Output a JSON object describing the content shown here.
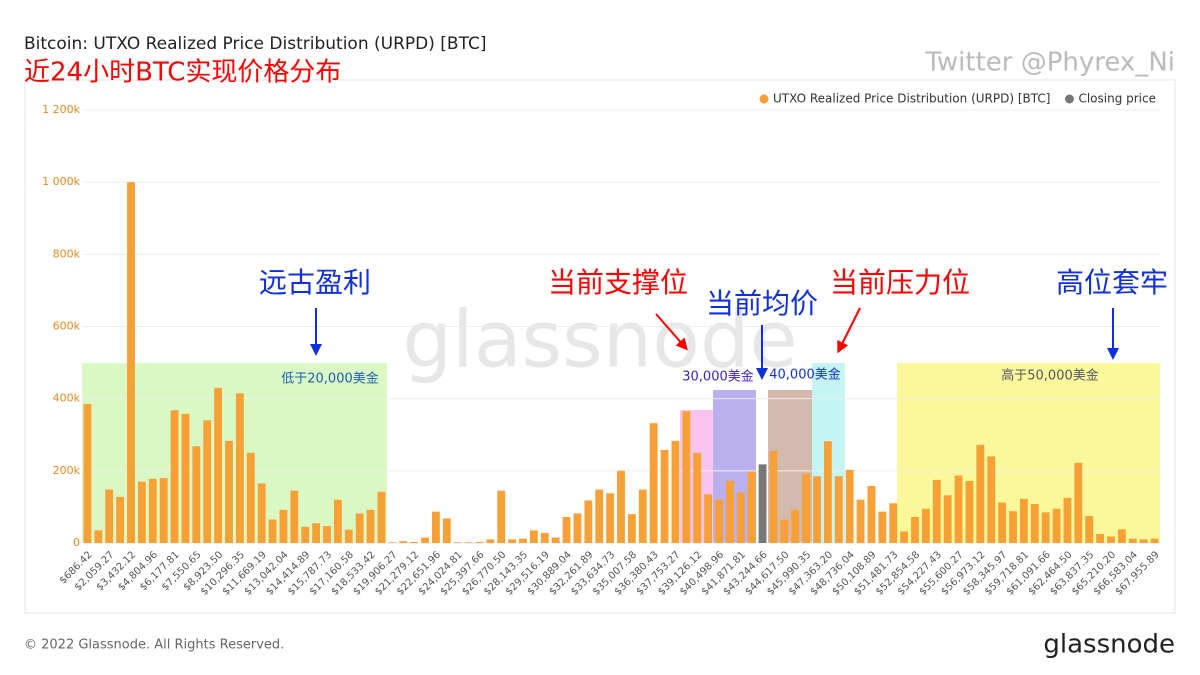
{
  "title": "Bitcoin: UTXO Realized Price Distribution (URPD) [BTC]",
  "subtitle": "近24小时BTC实现价格分布",
  "watermark_credit": "Twitter @Phyrex_Ni",
  "watermark_brand": "glassnode",
  "footer": "© 2022 Glassnode. All Rights Reserved.",
  "logo": "glassnode",
  "annotations": {
    "ancient_profit": "远古盈利",
    "support": "当前支撑位",
    "avg": "当前均价",
    "resistance": "当前压力位",
    "trapped": "高位套牢",
    "region_low": "低于20,000美金",
    "region_30k": "30,000美金",
    "region_40k": "40,000美金",
    "region_high": "高于50,000美金"
  },
  "chart_data": {
    "type": "bar",
    "legend": "top-right",
    "categories": [
      "$686.42",
      null,
      "$2,059.27",
      null,
      "$3,432.12",
      null,
      "$4,804.96",
      null,
      "$6,177.81",
      null,
      "$7,550.65",
      null,
      "$8,923.50",
      null,
      "$10,296.35",
      null,
      "$11,669.19",
      null,
      "$13,042.04",
      null,
      "$14,414.89",
      null,
      "$15,787.73",
      null,
      "$17,160.58",
      null,
      "$18,533.42",
      null,
      "$19,906.27",
      null,
      "$21,279.12",
      null,
      "$22,651.96",
      null,
      "$24,024.81",
      null,
      "$25,397.66",
      null,
      "$26,770.50",
      null,
      "$28,143.35",
      null,
      "$29,516.19",
      null,
      "$30,889.04",
      null,
      "$32,261.89",
      null,
      "$33,634.73",
      null,
      "$35,007.58",
      null,
      "$36,380.43",
      null,
      "$37,753.27",
      null,
      "$39,126.12",
      null,
      "$40,498.96",
      null,
      "$41,871.81",
      null,
      "$43,244.66",
      null,
      "$44,617.50",
      null,
      "$45,990.35",
      null,
      "$47,363.20",
      null,
      "$48,736.04",
      null,
      "$50,108.89",
      null,
      "$51,481.73",
      null,
      "$52,854.58",
      null,
      "$54,227.43",
      null,
      "$55,600.27",
      null,
      "$56,973.12",
      null,
      "$58,345.97",
      null,
      "$59,718.81",
      null,
      "$61,091.66",
      null,
      "$62,464.50",
      null,
      "$63,837.35",
      null,
      "$65,210.20",
      null,
      "$66,583.04",
      null,
      "$67,955.89"
    ],
    "series": [
      {
        "name": "UTXO Realized Price Distribution (URPD) [BTC]",
        "color": "#f7a035",
        "values": [
          385000,
          35000,
          148000,
          128000,
          1000000,
          170000,
          178000,
          180000,
          368000,
          358000,
          268000,
          340000,
          430000,
          283000,
          415000,
          250000,
          165000,
          65000,
          92000,
          145000,
          45000,
          55000,
          47000,
          120000,
          37000,
          82000,
          92000,
          142000,
          2000,
          5000,
          3000,
          15000,
          87000,
          68000,
          2000,
          2000,
          3000,
          10000,
          145000,
          10000,
          12000,
          35000,
          28000,
          15000,
          72000,
          82000,
          118000,
          148000,
          138000,
          200000,
          80000,
          148000,
          332000,
          258000,
          283000,
          365000,
          250000,
          135000,
          120000,
          172000,
          140000,
          198000,
          null,
          255000,
          65000,
          92000,
          192000,
          185000,
          282000,
          185000,
          203000,
          120000,
          158000,
          87000,
          110000,
          32000,
          72000,
          95000,
          175000,
          132000,
          187000,
          172000,
          272000,
          240000,
          112000,
          88000,
          122000,
          108000,
          85000,
          95000,
          125000,
          222000,
          75000,
          25000,
          18000,
          38000,
          12000,
          10000,
          12000
        ]
      },
      {
        "name": "Closing price",
        "color": "#777777",
        "values": [
          null,
          null,
          null,
          null,
          null,
          null,
          null,
          null,
          null,
          null,
          null,
          null,
          null,
          null,
          null,
          null,
          null,
          null,
          null,
          null,
          null,
          null,
          null,
          null,
          null,
          null,
          null,
          null,
          null,
          null,
          null,
          null,
          null,
          null,
          null,
          null,
          null,
          null,
          null,
          null,
          null,
          null,
          null,
          null,
          null,
          null,
          null,
          null,
          null,
          null,
          null,
          null,
          null,
          null,
          null,
          null,
          null,
          null,
          null,
          null,
          null,
          null,
          218000,
          null,
          null,
          null,
          null,
          null,
          null,
          null,
          null,
          null,
          null,
          null,
          null,
          null,
          null,
          null,
          null,
          null,
          null,
          null,
          null,
          null,
          null,
          null,
          null,
          null,
          null,
          null,
          null,
          null,
          null,
          null,
          null,
          null,
          null,
          null,
          null
        ]
      }
    ],
    "ylim": [
      0,
      1200000
    ],
    "yticks": [
      0,
      {
        "value": 200000,
        "label": "200k"
      },
      {
        "value": 400000,
        "label": "400k"
      },
      {
        "value": 600000,
        "label": "600k"
      },
      {
        "value": 800000,
        "label": "800k"
      },
      {
        "value": 1000000,
        "label": "1 000k"
      },
      {
        "value": 1200000,
        "label": "1 200k"
      }
    ]
  }
}
